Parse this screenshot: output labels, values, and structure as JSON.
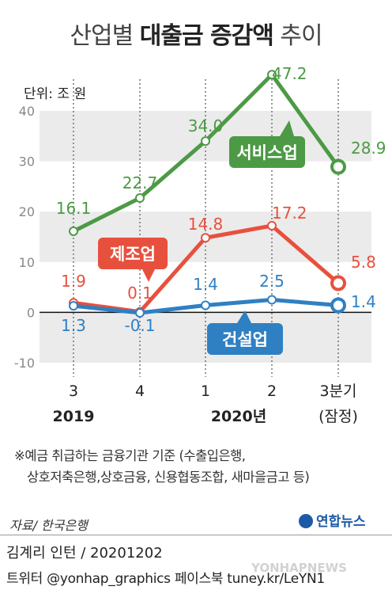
{
  "title": {
    "plain_before": "산업별 ",
    "bold": "대출금 증감액",
    "plain_after": " 추이"
  },
  "unit_label": "단위: 조 원",
  "note_lines": [
    "※예금 취급하는 금융기관 기준 (수출입은행,",
    "상호저축은행,상호금융, 신용협동조합, 새마을금고 등)"
  ],
  "source": "자료/ 한국은행",
  "logo": "연합뉴스",
  "byline": "김계리 인턴 / 20201202",
  "sns": "트위터 @yonhap_graphics 페이스북 tuney.kr/LeYN1",
  "watermark": "YONHAPNEWS",
  "colors": {
    "services": "#4c9a45",
    "manufacturing": "#e8503e",
    "construction": "#2f80c3",
    "band": "#ebebeb"
  },
  "chart_data": {
    "type": "line",
    "categories": [
      "3",
      "4",
      "1",
      "2",
      "3분기"
    ],
    "category_sublabels": [
      "2019",
      "2020년",
      "(잠정)"
    ],
    "ylim": [
      -10,
      40
    ],
    "yticks": [
      "40",
      "30",
      "20",
      "10",
      "0",
      "-10"
    ],
    "series": [
      {
        "name": "서비스업",
        "values": [
          16.1,
          22.7,
          34.0,
          47.2,
          28.9
        ],
        "labels": [
          "16.1",
          "22.7",
          "34.0",
          "47.2",
          "28.9"
        ]
      },
      {
        "name": "제조업",
        "values": [
          1.9,
          0.1,
          14.8,
          17.2,
          5.8
        ],
        "labels": [
          "1.9",
          "0.1",
          "14.8",
          "17.2",
          "5.8"
        ]
      },
      {
        "name": "건설업",
        "values": [
          1.3,
          -0.1,
          1.4,
          2.5,
          1.4
        ],
        "labels": [
          "1.3",
          "-0.1",
          "1.4",
          "2.5",
          "1.4"
        ]
      }
    ]
  }
}
